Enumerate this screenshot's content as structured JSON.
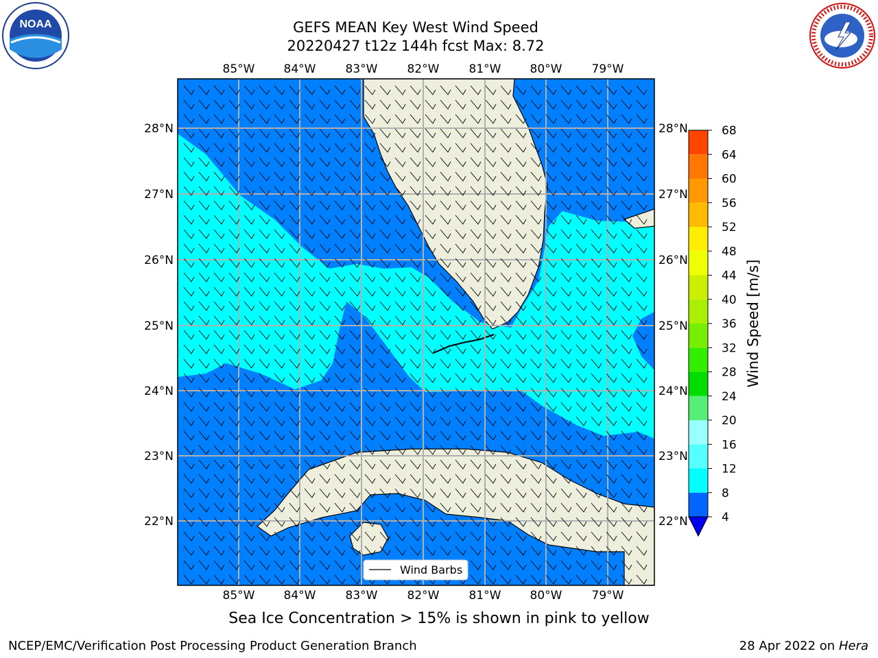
{
  "title": {
    "line1": "GEFS MEAN Key West Wind Speed",
    "line2": "20220427 t12z 144h fcst   Max: 8.72"
  },
  "map": {
    "lon_labels": [
      "85°W",
      "84°W",
      "83°W",
      "82°W",
      "81°W",
      "80°W",
      "79°W"
    ],
    "lat_labels": [
      "28°N",
      "27°N",
      "26°N",
      "25°N",
      "24°N",
      "23°N",
      "22°N"
    ],
    "legend_label": "Wind Barbs",
    "colors": {
      "band_4_8": "#0080ff",
      "band_8_12": "#00ffff",
      "land": "#eeeedd",
      "grid": "#b0b0b0"
    }
  },
  "colorbar": {
    "label": "Wind Speed [m/s]",
    "ticks": [
      "4",
      "8",
      "12",
      "16",
      "20",
      "24",
      "28",
      "32",
      "36",
      "40",
      "44",
      "48",
      "52",
      "56",
      "60",
      "64",
      "68"
    ],
    "colors": [
      "#0066ff",
      "#00ffff",
      "#55ffff",
      "#99ffff",
      "#55ee77",
      "#00dd00",
      "#33ee00",
      "#77ee00",
      "#aaee00",
      "#ccee00",
      "#eeff00",
      "#ffee00",
      "#ffbb00",
      "#ff9900",
      "#ff7700",
      "#ff4400",
      "#ff1100"
    ],
    "extend_color": "#0000ee"
  },
  "subtitle": "Sea Ice Concentration > 15% is shown in pink to yellow",
  "footer": {
    "left": "NCEP/EMC/Verification Post Processing Product Generation Branch",
    "right_date": "28 Apr 2022 on",
    "right_host": "Hera"
  },
  "logos": {
    "noaa_text": "NOAA",
    "nws_text": "NATIONAL WEATHER SERVICE"
  }
}
